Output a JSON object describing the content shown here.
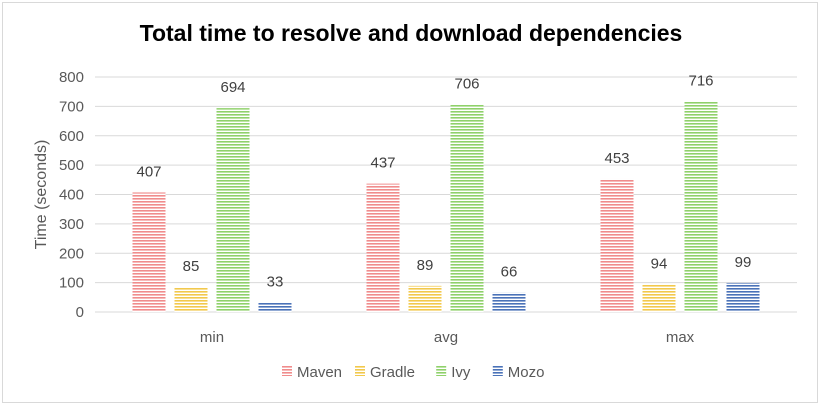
{
  "chart_data": {
    "type": "bar",
    "title": "Total time to resolve and download dependencies",
    "xlabel": "",
    "ylabel": "Time (seconds)",
    "ylim": [
      0,
      800
    ],
    "yticks": [
      0,
      100,
      200,
      300,
      400,
      500,
      600,
      700,
      800
    ],
    "grid": true,
    "legend": "bottom",
    "categories": [
      "min",
      "avg",
      "max"
    ],
    "series": [
      {
        "name": "Maven",
        "values": [
          407,
          437,
          453
        ],
        "color": "#f08c8c"
      },
      {
        "name": "Gradle",
        "values": [
          85,
          89,
          94
        ],
        "color": "#f2c94c"
      },
      {
        "name": "Ivy",
        "values": [
          694,
          706,
          716
        ],
        "color": "#8fd16a"
      },
      {
        "name": "Mozo",
        "values": [
          33,
          66,
          99
        ],
        "color": "#4a72b8"
      }
    ]
  }
}
